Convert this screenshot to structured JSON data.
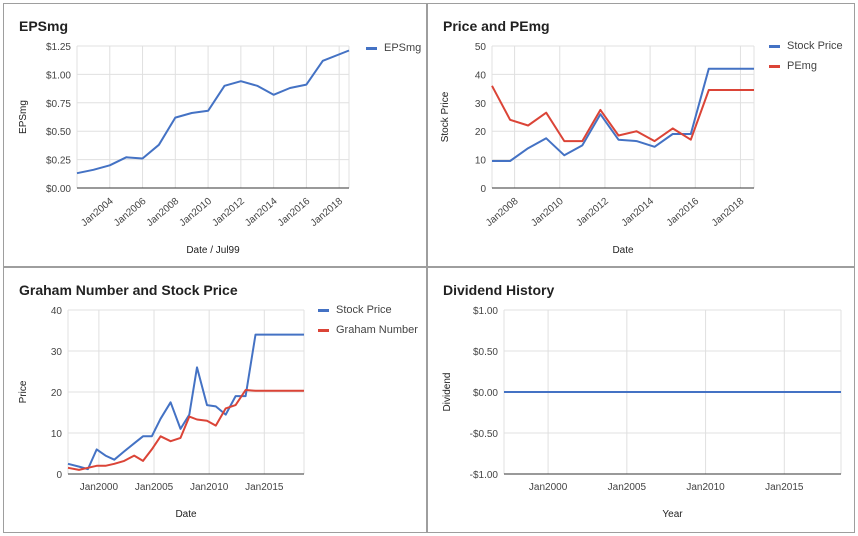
{
  "panels": [
    {
      "title": "EPSmg",
      "chart_data": {
        "type": "line",
        "xlabel": "Date / Jul99",
        "ylabel": "EPSmg",
        "ylim": [
          0,
          1.25
        ],
        "y_ticks": [
          "$0.00",
          "$0.25",
          "$0.50",
          "$0.75",
          "$1.00",
          "$1.25"
        ],
        "y_tick_values": [
          0,
          0.25,
          0.5,
          0.75,
          1.0,
          1.25
        ],
        "xlim": [
          2002.0,
          2018.6
        ],
        "x_ticks": [
          "Jan2004",
          "Jan2006",
          "Jan2008",
          "Jan2010",
          "Jan2012",
          "Jan2014",
          "Jan2016",
          "Jan2018"
        ],
        "x_tick_values": [
          2004,
          2006,
          2008,
          2010,
          2012,
          2014,
          2016,
          2018
        ],
        "x_tick_rotated": true,
        "grid": true,
        "legend_position": "right",
        "series": [
          {
            "name": "EPSmg",
            "color": "#4472c4",
            "x": [
              2002.0,
              2003.0,
              2004.0,
              2005.0,
              2006.0,
              2007.0,
              2008.0,
              2009.0,
              2010.0,
              2011.0,
              2012.0,
              2013.0,
              2014.0,
              2015.0,
              2016.0,
              2017.0,
              2018.6
            ],
            "y": [
              0.13,
              0.16,
              0.2,
              0.27,
              0.26,
              0.38,
              0.62,
              0.66,
              0.68,
              0.9,
              0.94,
              0.9,
              0.82,
              0.88,
              0.91,
              1.12,
              1.21
            ]
          }
        ]
      }
    },
    {
      "title": "Price and PEmg",
      "chart_data": {
        "type": "line",
        "xlabel": "Date",
        "ylabel": "Stock Price",
        "ylim": [
          0,
          50
        ],
        "y_ticks": [
          "0",
          "10",
          "20",
          "30",
          "40",
          "50"
        ],
        "y_tick_values": [
          0,
          10,
          20,
          30,
          40,
          50
        ],
        "xlim": [
          2007.0,
          2018.6
        ],
        "x_ticks": [
          "Jan2008",
          "Jan2010",
          "Jan2012",
          "Jan2014",
          "Jan2016",
          "Jan2018"
        ],
        "x_tick_values": [
          2008,
          2010,
          2012,
          2014,
          2016,
          2018
        ],
        "x_tick_rotated": true,
        "grid": true,
        "legend_position": "right",
        "series": [
          {
            "name": "Stock Price",
            "color": "#4472c4",
            "x": [
              2007.0,
              2007.8,
              2008.6,
              2009.4,
              2010.2,
              2011.0,
              2011.8,
              2012.6,
              2013.4,
              2014.2,
              2015.0,
              2015.8,
              2016.6,
              2018.6
            ],
            "y": [
              9.5,
              9.5,
              14.0,
              17.5,
              11.5,
              15.0,
              26.0,
              17.0,
              16.5,
              14.5,
              19.0,
              19.0,
              42.0,
              42.0
            ]
          },
          {
            "name": "PEmg",
            "color": "#db4437",
            "x": [
              2007.0,
              2007.8,
              2008.6,
              2009.4,
              2010.2,
              2011.0,
              2011.8,
              2012.6,
              2013.4,
              2014.2,
              2015.0,
              2015.8,
              2016.6,
              2018.6
            ],
            "y": [
              36.0,
              24.0,
              22.0,
              26.5,
              16.5,
              16.5,
              27.5,
              18.5,
              20.0,
              16.5,
              21.0,
              17.0,
              34.5,
              34.5
            ]
          }
        ]
      }
    },
    {
      "title": "Graham Number and Stock Price",
      "chart_data": {
        "type": "line",
        "xlabel": "Date",
        "ylabel": "Price",
        "ylim": [
          0,
          40
        ],
        "y_ticks": [
          "0",
          "10",
          "20",
          "30",
          "40"
        ],
        "y_tick_values": [
          0,
          10,
          20,
          30,
          40
        ],
        "xlim": [
          1997.2,
          2018.6
        ],
        "x_ticks": [
          "Jan2000",
          "Jan2005",
          "Jan2010",
          "Jan2015"
        ],
        "x_tick_values": [
          2000,
          2005,
          2010,
          2015
        ],
        "x_tick_rotated": false,
        "grid": true,
        "legend_position": "right",
        "series": [
          {
            "name": "Stock Price",
            "color": "#4472c4",
            "x": [
              1997.2,
              1998.2,
              1999.0,
              1999.8,
              2000.6,
              2001.4,
              2002.3,
              2003.2,
              2004.0,
              2004.8,
              2005.6,
              2006.5,
              2007.4,
              2008.2,
              2008.9,
              2009.8,
              2010.6,
              2011.5,
              2012.4,
              2013.3,
              2014.2,
              2015.0,
              2015.8,
              2016.6,
              2018.6
            ],
            "y": [
              2.5,
              1.8,
              1.2,
              6.0,
              4.5,
              3.5,
              5.5,
              7.5,
              9.2,
              9.2,
              13.5,
              17.5,
              11.0,
              14.5,
              26.0,
              16.8,
              16.5,
              14.5,
              19.0,
              19.0,
              34.0,
              34.0,
              34.0,
              34.0,
              34.0
            ]
          },
          {
            "name": "Graham Number",
            "color": "#db4437",
            "x": [
              1997.2,
              1998.2,
              1999.0,
              1999.8,
              2000.6,
              2001.4,
              2002.3,
              2003.2,
              2004.0,
              2004.8,
              2005.6,
              2006.5,
              2007.4,
              2008.2,
              2008.9,
              2009.8,
              2010.6,
              2011.5,
              2012.4,
              2013.3,
              2014.2,
              2015.0,
              2015.8,
              2016.6,
              2018.6
            ],
            "y": [
              1.5,
              1.0,
              1.5,
              2.0,
              2.0,
              2.5,
              3.2,
              4.5,
              3.2,
              6.0,
              9.2,
              8.0,
              8.8,
              14.0,
              13.3,
              13.0,
              11.8,
              16.0,
              16.8,
              20.5,
              20.3,
              20.3,
              20.3,
              20.3,
              20.3
            ]
          }
        ]
      }
    },
    {
      "title": "Dividend History",
      "chart_data": {
        "type": "line",
        "xlabel": "Year",
        "ylabel": "Dividend",
        "ylim": [
          -1.0,
          1.0
        ],
        "y_ticks": [
          "-$1.00",
          "-$0.50",
          "$0.00",
          "$0.50",
          "$1.00"
        ],
        "y_tick_values": [
          -1.0,
          -0.5,
          0.0,
          0.5,
          1.0
        ],
        "xlim": [
          1997.2,
          2018.6
        ],
        "x_ticks": [
          "Jan2000",
          "Jan2005",
          "Jan2010",
          "Jan2015"
        ],
        "x_tick_values": [
          2000,
          2005,
          2010,
          2015
        ],
        "x_tick_rotated": false,
        "grid": true,
        "legend_position": "none",
        "series": [
          {
            "color": "#4472c4",
            "x": [
              1997.2,
              2018.6
            ],
            "y": [
              0.0,
              0.0
            ]
          }
        ]
      }
    }
  ]
}
